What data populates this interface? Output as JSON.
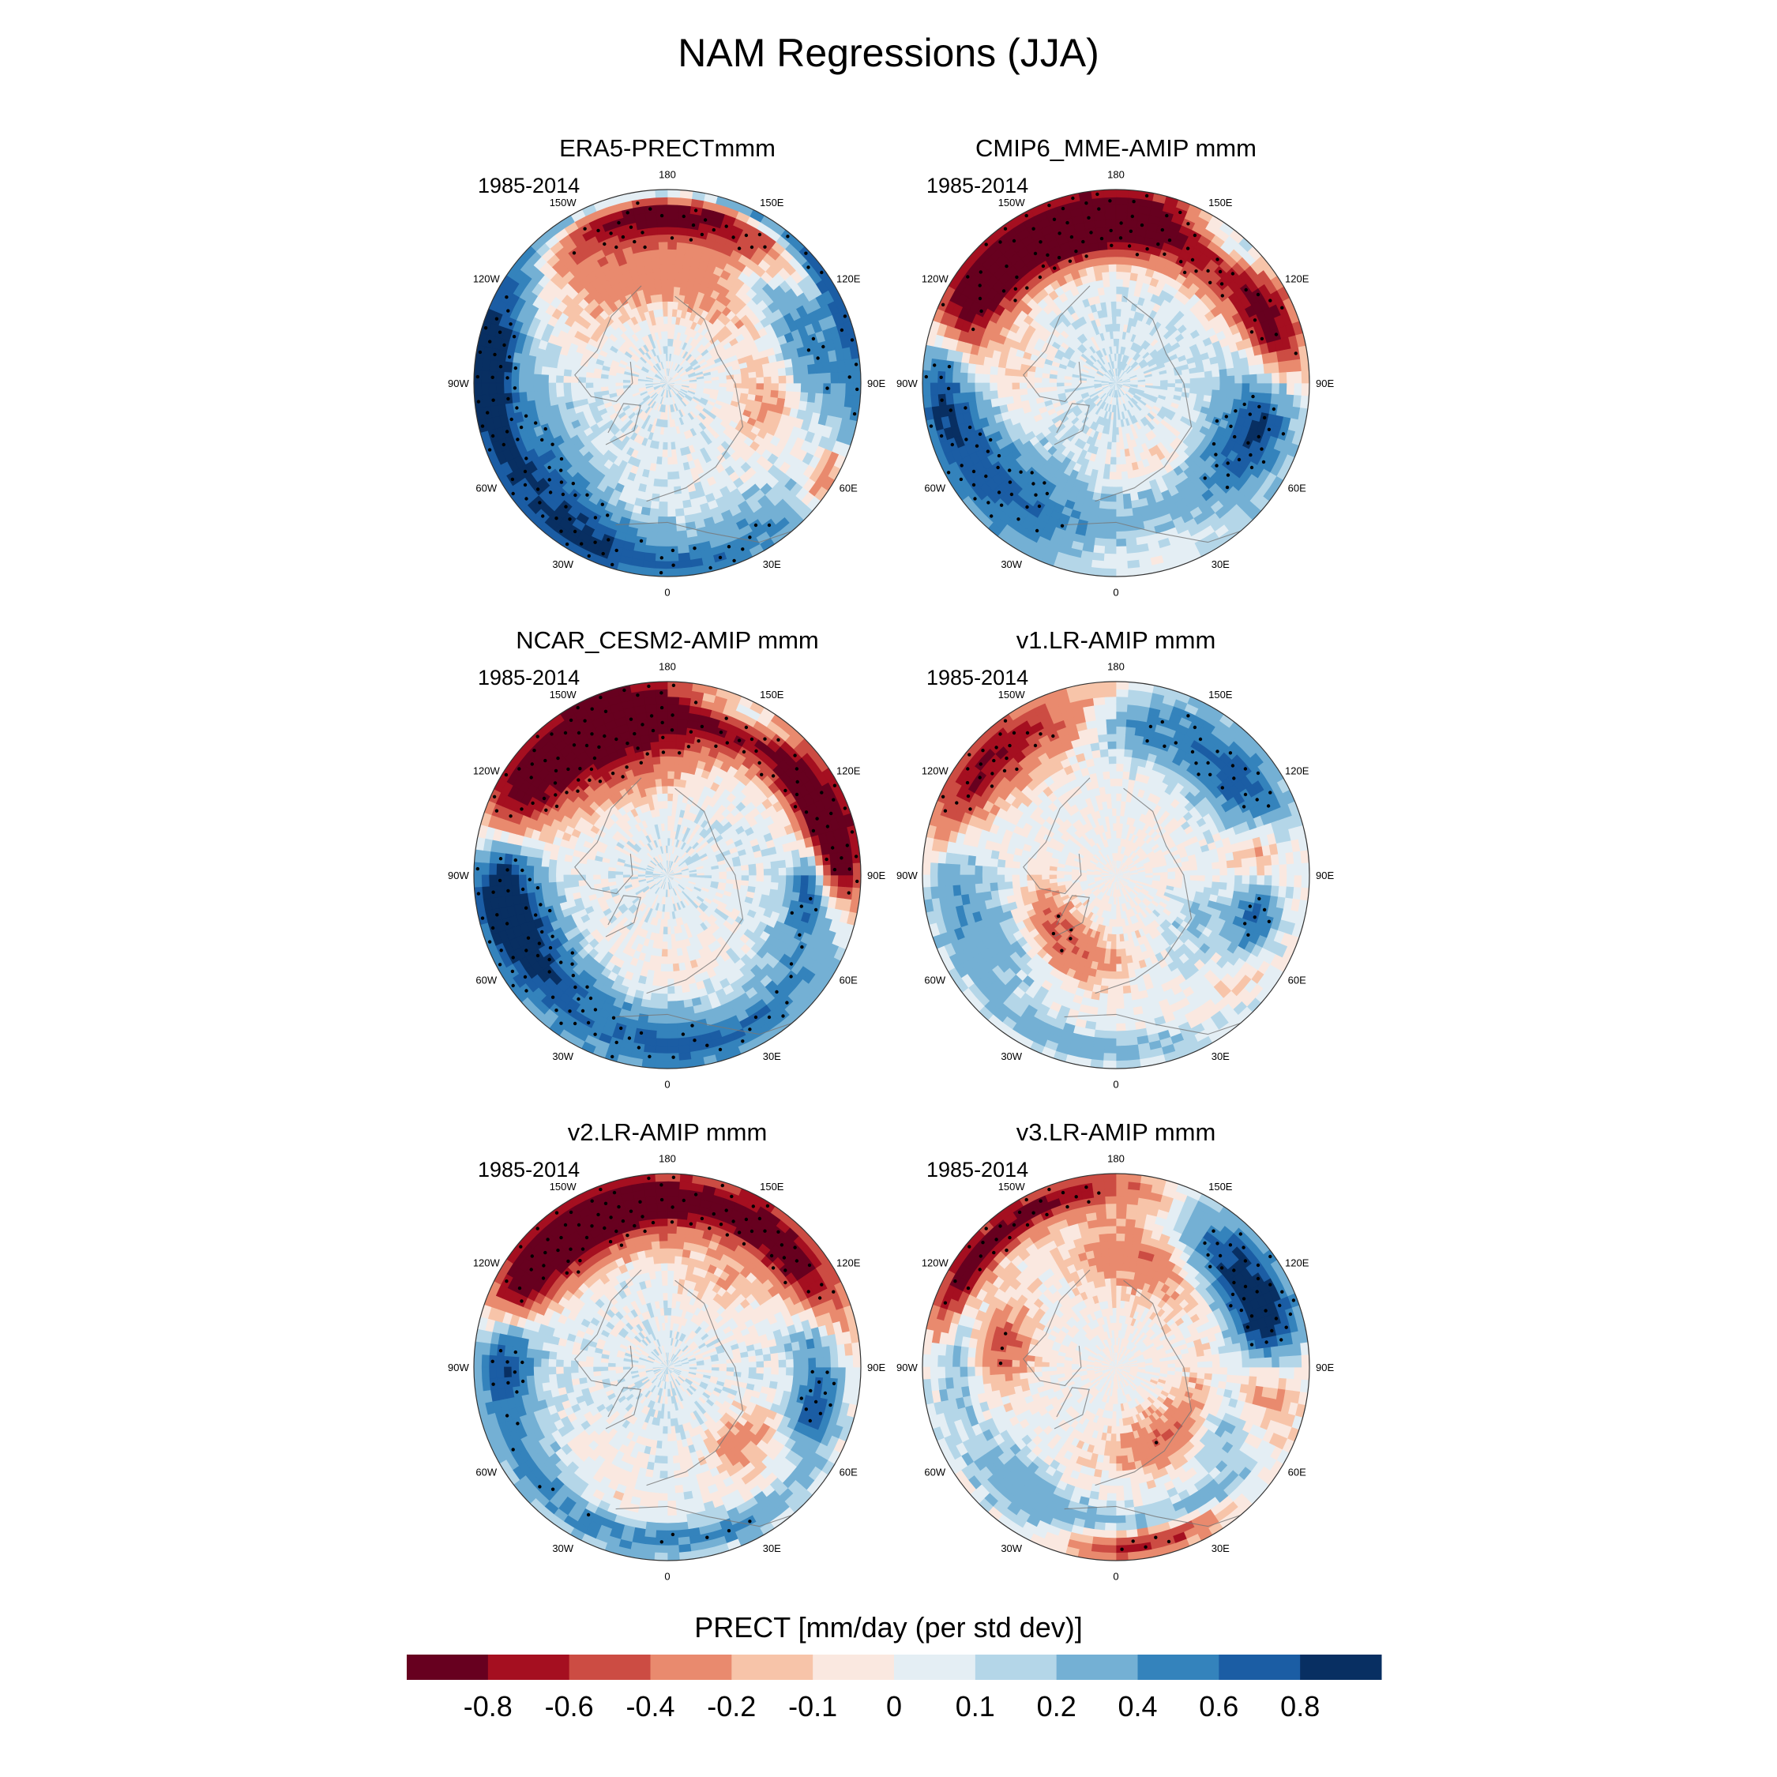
{
  "figure": {
    "title": "NAM Regressions (JJA)"
  },
  "panels": [
    {
      "title": "ERA5-PRECTmmm",
      "period": "1985-2014",
      "pattern": "era5"
    },
    {
      "title": "CMIP6_MME-AMIP  mmm",
      "period": "1985-2014",
      "pattern": "cmip6"
    },
    {
      "title": "NCAR_CESM2-AMIP  mmm",
      "period": "1985-2014",
      "pattern": "cesm2"
    },
    {
      "title": "v1.LR-AMIP  mmm",
      "period": "1985-2014",
      "pattern": "v1"
    },
    {
      "title": "v2.LR-AMIP  mmm",
      "period": "1985-2014",
      "pattern": "v2"
    },
    {
      "title": "v3.LR-AMIP  mmm",
      "period": "1985-2014",
      "pattern": "v3"
    }
  ],
  "longitude_labels": [
    "180",
    "150E",
    "120E",
    "90E",
    "60E",
    "30E",
    "0",
    "30W",
    "60W",
    "90W",
    "120W",
    "150W"
  ],
  "chart_data": {
    "type": "heatmap",
    "projection": "north-polar-stereographic",
    "variable": "PRECT",
    "colorbar_title": "PRECT [mm/day (per std dev)]",
    "colorbar_levels": [
      "-0.8",
      "-0.6",
      "-0.4",
      "-0.2",
      "-0.1",
      "0",
      "0.1",
      "0.2",
      "0.4",
      "0.6",
      "0.8"
    ],
    "colorbar_colors": [
      "#67001f",
      "#a50f20",
      "#cc4c43",
      "#e98a6e",
      "#f7c4a9",
      "#fae8e0",
      "#e4eef4",
      "#b4d6e8",
      "#74b0d4",
      "#3483bc",
      "#1b5da4",
      "#082f62"
    ],
    "stippling": "significant regions marked with black dots",
    "layout": "3 rows x 2 columns"
  }
}
